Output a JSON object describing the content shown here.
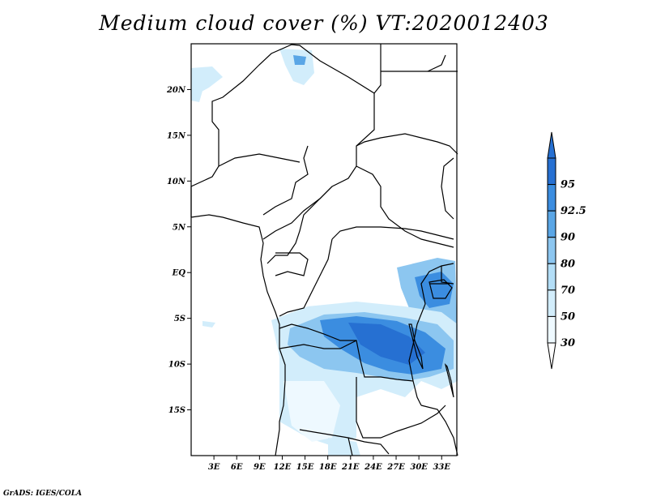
{
  "title": "Medium cloud cover (%) VT:2020012403",
  "credit": "GrADS: IGES/COLA",
  "map": {
    "lat_range": [
      -20,
      25
    ],
    "lon_range": [
      0,
      35
    ],
    "lat_ticks": [
      {
        "lat": 20,
        "label": "20N"
      },
      {
        "lat": 15,
        "label": "15N"
      },
      {
        "lat": 10,
        "label": "10N"
      },
      {
        "lat": 5,
        "label": "5N"
      },
      {
        "lat": 0,
        "label": "EQ"
      },
      {
        "lat": -5,
        "label": "5S"
      },
      {
        "lat": -10,
        "label": "10S"
      },
      {
        "lat": -15,
        "label": "15S"
      }
    ],
    "lon_ticks": [
      {
        "lon": 3,
        "label": "3E"
      },
      {
        "lon": 6,
        "label": "6E"
      },
      {
        "lon": 9,
        "label": "9E"
      },
      {
        "lon": 12,
        "label": "12E"
      },
      {
        "lon": 15,
        "label": "15E"
      },
      {
        "lon": 18,
        "label": "18E"
      },
      {
        "lon": 21,
        "label": "21E"
      },
      {
        "lon": 24,
        "label": "24E"
      },
      {
        "lon": 27,
        "label": "27E"
      },
      {
        "lon": 30,
        "label": "30E"
      },
      {
        "lon": 33,
        "label": "33E"
      }
    ]
  },
  "legend": {
    "levels": [
      "30",
      "50",
      "70",
      "80",
      "90",
      "92.5",
      "95"
    ],
    "colors": [
      "#eef9ff",
      "#d2edfb",
      "#b3def7",
      "#8cc6f0",
      "#5aa6e6",
      "#3b8de0",
      "#2670d2"
    ],
    "end_colors": {
      "low": "#ffffff",
      "high": "#2670d2"
    }
  }
}
